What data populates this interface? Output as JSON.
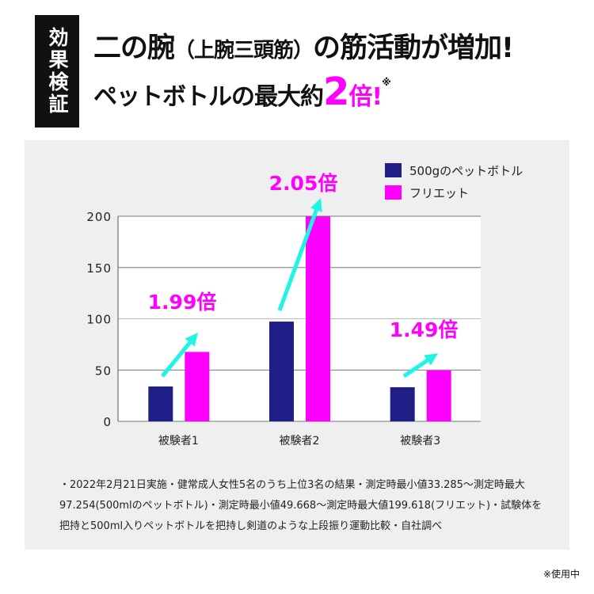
{
  "header": {
    "badge": "効果検証",
    "line1_a": "二の腕",
    "line1_b": "（上腕三頭筋）",
    "line1_c": "の筋活動が増加!",
    "line2_a": "ペットボトルの最大約",
    "line2_big": "2",
    "line2_b": "倍!",
    "line2_note": "※"
  },
  "chart_data": {
    "type": "bar",
    "categories": [
      "被験者1",
      "被験者2",
      "被験者3"
    ],
    "series": [
      {
        "name": "500gのペットボトル",
        "color": "#1e1e87",
        "values": [
          34.0,
          97.254,
          33.285
        ]
      },
      {
        "name": "フリエット",
        "color": "#ff00ff",
        "values": [
          67.7,
          199.618,
          49.668
        ]
      }
    ],
    "ylim": [
      0,
      200
    ],
    "yticks": [
      "0",
      "50",
      "100",
      "150",
      "200"
    ],
    "grid": true,
    "legend": "top-right",
    "annotations": [
      "1.99倍",
      "2.05倍",
      "1.49倍"
    ],
    "arrow_color": "#1ef5e6"
  },
  "footnote": "・2022年2月21日実施・健常成人女性5名のうち上位3名の結果・測定時最小値33.285～測定時最大97.254(500mlのペットボトル)・測定時最小値49.668～測定時最大値199.618(フリエット)・試験体を把持と500ml入りペットボトルを把持し剣道のような上段振り運動比較・自社調べ",
  "usage_note": "※使用中"
}
